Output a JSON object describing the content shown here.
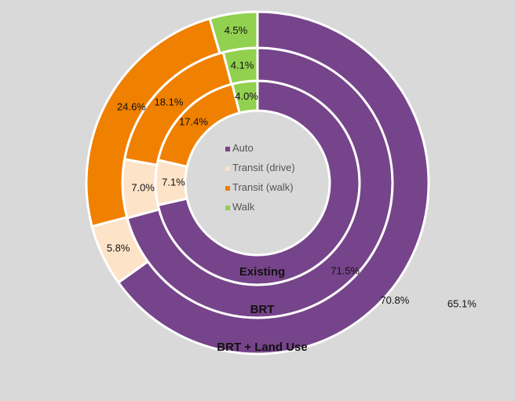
{
  "chart_data": {
    "type": "doughnut",
    "categories": [
      "Auto",
      "Transit (drive)",
      "Transit (walk)",
      "Walk"
    ],
    "colors": [
      "#76448a",
      "#fde3c8",
      "#f08000",
      "#92d050"
    ],
    "series": [
      {
        "name": "Existing",
        "values": [
          71.5,
          7.1,
          17.4,
          4.0
        ],
        "labels": [
          "71.5%",
          "7.1%",
          "17.4%",
          "4.0%"
        ]
      },
      {
        "name": "BRT",
        "values": [
          70.8,
          7.0,
          18.1,
          4.1
        ],
        "labels": [
          "70.8%",
          "7.0%",
          "18.1%",
          "4.1%"
        ]
      },
      {
        "name": "BRT + Land Use",
        "values": [
          65.1,
          5.8,
          24.6,
          4.5
        ],
        "labels": [
          "65.1%",
          "5.8%",
          "24.6%",
          "4.5%"
        ]
      }
    ],
    "legend": {
      "position": "center",
      "items": [
        "Auto",
        "Transit (drive)",
        "Transit (walk)",
        "Walk"
      ]
    }
  }
}
